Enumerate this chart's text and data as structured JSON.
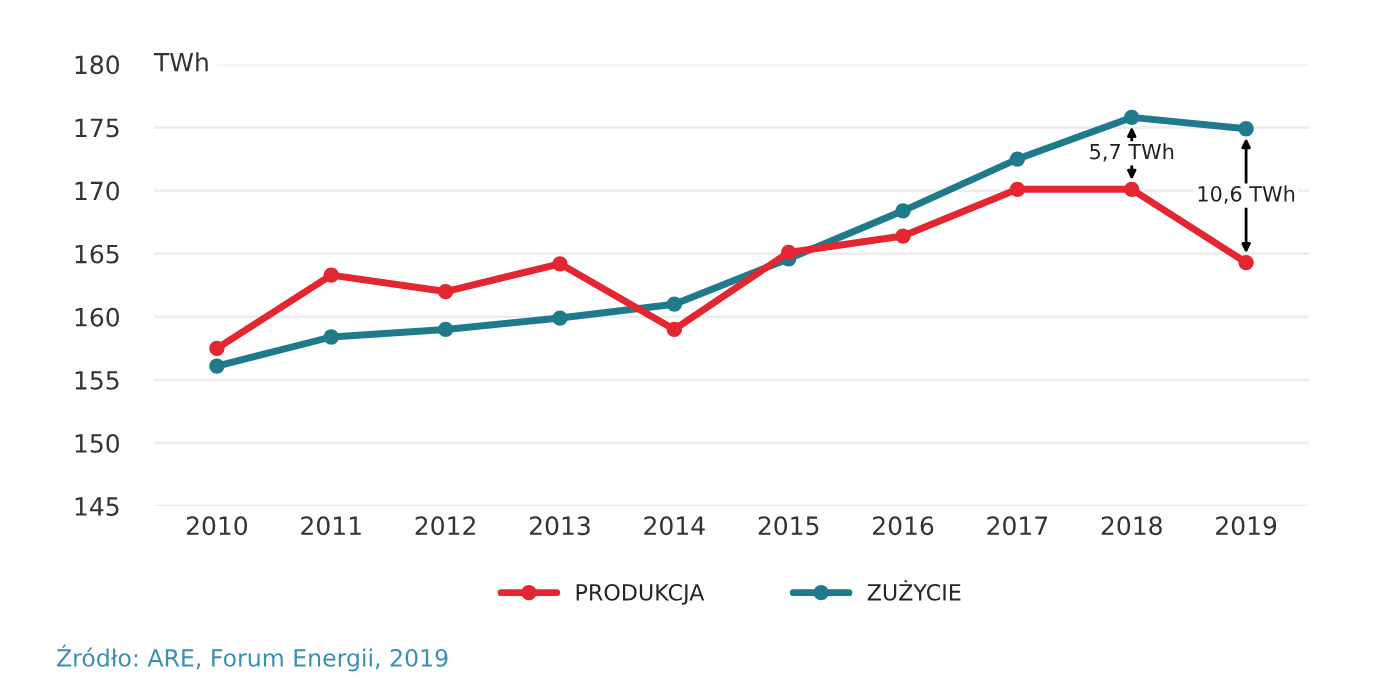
{
  "chart_data": {
    "type": "line",
    "ylabel": "TWh",
    "categories": [
      "2010",
      "2011",
      "2012",
      "2013",
      "2014",
      "2015",
      "2016",
      "2017",
      "2018",
      "2019"
    ],
    "series": [
      {
        "name": "PRODUKCJA",
        "color": "#e3262f",
        "values": [
          157.5,
          163.3,
          162.0,
          164.2,
          159.0,
          165.1,
          166.4,
          170.1,
          170.1,
          164.3
        ]
      },
      {
        "name": "ZUŻYCIE",
        "color": "#1f7a8c",
        "values": [
          156.1,
          158.4,
          159.0,
          159.9,
          161.0,
          164.6,
          168.4,
          172.5,
          175.8,
          174.9
        ]
      }
    ],
    "ylim": [
      145,
      180
    ],
    "yticks": [
      145,
      150,
      155,
      160,
      165,
      170,
      175,
      180
    ],
    "grid": "y",
    "legend": "bottom",
    "marker": "circle",
    "line_style": "solid",
    "annotations": [
      "5,7 TWh",
      "10,6 TWh",
      "Źródło: ARE, Forum Energii, 2019"
    ]
  }
}
